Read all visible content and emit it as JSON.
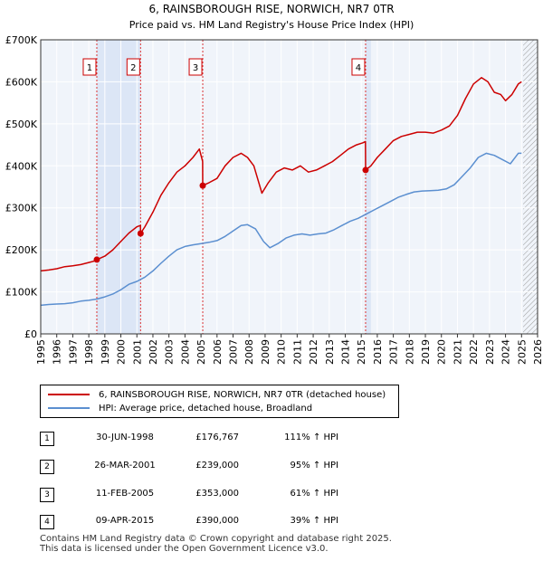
{
  "chart_data": {
    "type": "line",
    "title": "6, RAINSBOROUGH RISE, NORWICH, NR7 0TR",
    "subtitle": "Price paid vs. HM Land Registry's House Price Index (HPI)",
    "xlim": [
      1995,
      2026
    ],
    "ylim": [
      0,
      700000
    ],
    "y_ticks": [
      {
        "value": 0,
        "label": "£0"
      },
      {
        "value": 100000,
        "label": "£100K"
      },
      {
        "value": 200000,
        "label": "£200K"
      },
      {
        "value": 300000,
        "label": "£300K"
      },
      {
        "value": 400000,
        "label": "£400K"
      },
      {
        "value": 500000,
        "label": "£500K"
      },
      {
        "value": 600000,
        "label": "£600K"
      },
      {
        "value": 700000,
        "label": "£700K"
      }
    ],
    "x_ticks": [
      1995,
      1996,
      1997,
      1998,
      1999,
      2000,
      2001,
      2002,
      2003,
      2004,
      2005,
      2006,
      2007,
      2008,
      2009,
      2010,
      2011,
      2012,
      2013,
      2014,
      2015,
      2016,
      2017,
      2018,
      2019,
      2020,
      2021,
      2022,
      2023,
      2024,
      2025,
      2026
    ],
    "future_hatch_from": 2025.1,
    "shaded_spans": [
      [
        1998.5,
        2001.23
      ],
      [
        2015.27,
        2015.6
      ]
    ],
    "series": [
      {
        "name": "6, RAINSBOROUGH RISE, NORWICH, NR7 0TR (detached house)",
        "color": "#cc0000",
        "x": [
          1995.0,
          1995.5,
          1996.0,
          1996.5,
          1997.0,
          1997.5,
          1998.0,
          1998.49,
          1998.5,
          1999.0,
          1999.5,
          2000.0,
          2000.5,
          2001.0,
          2001.22,
          2001.23,
          2001.5,
          2002.0,
          2002.5,
          2003.0,
          2003.5,
          2004.0,
          2004.5,
          2004.9,
          2005.1,
          2005.11,
          2005.5,
          2006.0,
          2006.5,
          2007.0,
          2007.5,
          2007.9,
          2008.3,
          2008.8,
          2009.2,
          2009.7,
          2010.2,
          2010.7,
          2011.2,
          2011.7,
          2012.2,
          2012.7,
          2013.2,
          2013.7,
          2014.2,
          2014.7,
          2015.1,
          2015.26,
          2015.27,
          2015.6,
          2016.0,
          2016.5,
          2017.0,
          2017.5,
          2018.0,
          2018.5,
          2019.0,
          2019.5,
          2020.0,
          2020.5,
          2021.0,
          2021.5,
          2022.0,
          2022.5,
          2022.9,
          2023.3,
          2023.7,
          2024.0,
          2024.4,
          2024.8,
          2025.0
        ],
        "values": [
          150000,
          152000,
          155000,
          160000,
          162000,
          165000,
          170000,
          175000,
          176767,
          185000,
          200000,
          220000,
          240000,
          255000,
          258000,
          239000,
          255000,
          290000,
          330000,
          360000,
          385000,
          400000,
          420000,
          440000,
          410000,
          353000,
          360000,
          370000,
          400000,
          420000,
          430000,
          420000,
          400000,
          335000,
          360000,
          385000,
          395000,
          390000,
          400000,
          385000,
          390000,
          400000,
          410000,
          425000,
          440000,
          450000,
          455000,
          458000,
          390000,
          400000,
          420000,
          440000,
          460000,
          470000,
          475000,
          480000,
          480000,
          478000,
          485000,
          495000,
          520000,
          560000,
          595000,
          610000,
          600000,
          575000,
          570000,
          555000,
          570000,
          595000,
          600000
        ]
      },
      {
        "name": "HPI: Average price, detached house, Broadland",
        "color": "#5b8fd0",
        "x": [
          1995.0,
          1995.5,
          1996.0,
          1996.5,
          1997.0,
          1997.5,
          1998.0,
          1998.5,
          1999.0,
          1999.5,
          2000.0,
          2000.5,
          2001.0,
          2001.5,
          2002.0,
          2002.5,
          2003.0,
          2003.5,
          2004.0,
          2004.5,
          2005.0,
          2005.5,
          2006.0,
          2006.5,
          2007.0,
          2007.5,
          2007.9,
          2008.4,
          2008.9,
          2009.3,
          2009.8,
          2010.3,
          2010.8,
          2011.3,
          2011.8,
          2012.3,
          2012.8,
          2013.3,
          2013.8,
          2014.3,
          2014.8,
          2015.3,
          2015.8,
          2016.3,
          2016.8,
          2017.3,
          2017.8,
          2018.3,
          2018.8,
          2019.3,
          2019.8,
          2020.3,
          2020.8,
          2021.3,
          2021.8,
          2022.3,
          2022.8,
          2023.3,
          2023.8,
          2024.3,
          2024.8,
          2025.0
        ],
        "values": [
          68000,
          70000,
          71000,
          72000,
          74000,
          78000,
          80000,
          83000,
          88000,
          95000,
          105000,
          118000,
          125000,
          135000,
          150000,
          168000,
          185000,
          200000,
          208000,
          212000,
          215000,
          218000,
          222000,
          232000,
          245000,
          258000,
          260000,
          250000,
          220000,
          205000,
          215000,
          228000,
          235000,
          238000,
          235000,
          238000,
          240000,
          248000,
          258000,
          268000,
          275000,
          285000,
          295000,
          305000,
          315000,
          325000,
          332000,
          338000,
          340000,
          341000,
          342000,
          345000,
          355000,
          375000,
          395000,
          420000,
          430000,
          425000,
          415000,
          405000,
          430000,
          430000
        ]
      }
    ],
    "markers": [
      {
        "id": "1",
        "x": 1998.5,
        "value": 176767
      },
      {
        "id": "2",
        "x": 2001.23,
        "value": 239000
      },
      {
        "id": "3",
        "x": 2005.11,
        "value": 353000
      },
      {
        "id": "4",
        "x": 2015.27,
        "value": 390000
      }
    ]
  },
  "legend": {
    "items": [
      {
        "label": "6, RAINSBOROUGH RISE, NORWICH, NR7 0TR (detached house)",
        "color": "#cc0000"
      },
      {
        "label": "HPI: Average price, detached house, Broadland",
        "color": "#5b8fd0"
      }
    ]
  },
  "transactions": [
    {
      "num": "1",
      "date": "30-JUN-1998",
      "price": "£176,767",
      "hpi": "111% ↑ HPI"
    },
    {
      "num": "2",
      "date": "26-MAR-2001",
      "price": "£239,000",
      "hpi": "95% ↑ HPI"
    },
    {
      "num": "3",
      "date": "11-FEB-2005",
      "price": "£353,000",
      "hpi": "61% ↑ HPI"
    },
    {
      "num": "4",
      "date": "09-APR-2015",
      "price": "£390,000",
      "hpi": "39% ↑ HPI"
    }
  ],
  "footer": {
    "line1": "Contains HM Land Registry data © Crown copyright and database right 2025.",
    "line2": "This data is licensed under the Open Government Licence v3.0."
  }
}
